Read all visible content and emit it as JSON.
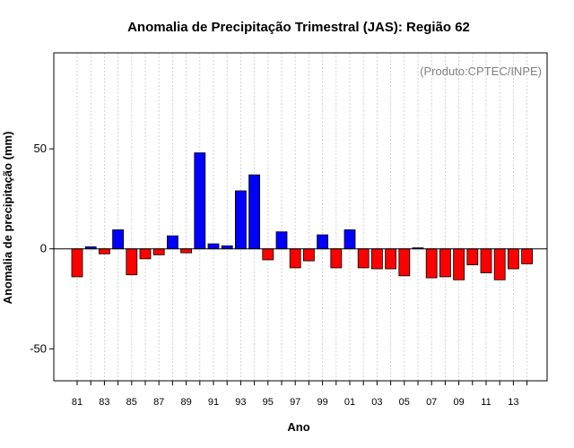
{
  "chart_data": {
    "type": "bar",
    "title": "Anomalia de Precipitação Trimestral (JAS): Região 62",
    "xlabel": "Ano",
    "ylabel": "Anomalia de precipitação (mm)",
    "credit": "(Produto:CPTEC/INPE)",
    "ylim": [
      -66,
      98
    ],
    "yticks": [
      -50,
      0,
      50
    ],
    "grid": true,
    "positive_color": "#0000ff",
    "negative_color": "#ff0000",
    "categories": [
      "81",
      "82",
      "83",
      "84",
      "85",
      "86",
      "87",
      "88",
      "89",
      "90",
      "91",
      "92",
      "93",
      "94",
      "95",
      "96",
      "97",
      "98",
      "99",
      "00",
      "01",
      "02",
      "03",
      "04",
      "05",
      "06",
      "07",
      "08",
      "09",
      "10",
      "11",
      "12",
      "13",
      "14"
    ],
    "tick_labels": [
      "81",
      "83",
      "85",
      "87",
      "89",
      "91",
      "93",
      "95",
      "97",
      "99",
      "01",
      "03",
      "05",
      "07",
      "09",
      "11",
      "13"
    ],
    "values": [
      -14,
      1,
      -2.5,
      9.5,
      -13,
      -5,
      -3,
      6.5,
      -2,
      48,
      2.5,
      1.5,
      29,
      37,
      -5.5,
      8.5,
      -9.5,
      -6,
      7,
      -9.5,
      9.5,
      -9.5,
      -10,
      -10,
      -13.5,
      0.5,
      -14.5,
      -14,
      -15.5,
      -8,
      -12,
      -15.5,
      -10,
      -7.5
    ]
  }
}
